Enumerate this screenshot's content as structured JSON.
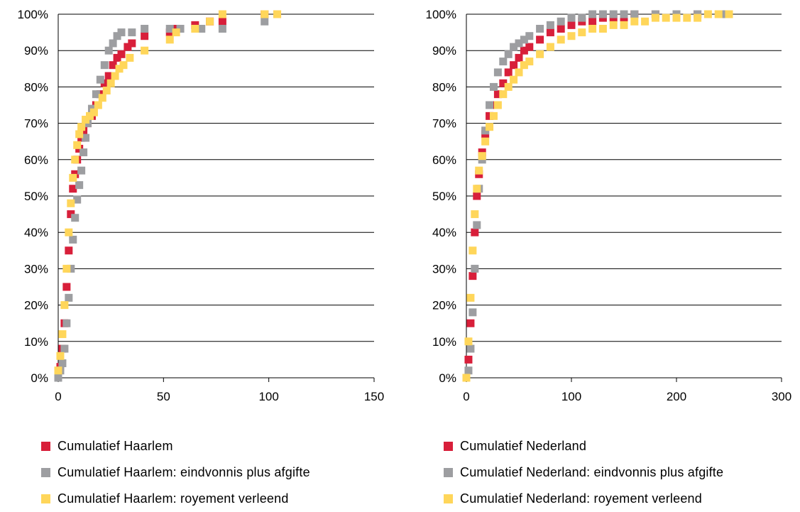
{
  "colors": {
    "red": "#D81F3A",
    "gray": "#9D9EA1",
    "yellow": "#FFD65A",
    "grid": "#000000"
  },
  "chart_data": [
    {
      "type": "scatter",
      "title": "",
      "xlabel": "",
      "ylabel": "",
      "xlim": [
        0,
        150
      ],
      "ylim": [
        0,
        100
      ],
      "x_ticks": [
        "0",
        "50",
        "100",
        "150"
      ],
      "y_ticks": [
        "0%",
        "10%",
        "20%",
        "30%",
        "40%",
        "50%",
        "60%",
        "70%",
        "80%",
        "90%",
        "100%"
      ],
      "grid": "horizontal",
      "series": [
        {
          "name": "Cumulatief Haarlem",
          "color": "#D81F3A",
          "points": [
            [
              0,
              0
            ],
            [
              1,
              3
            ],
            [
              2,
              8
            ],
            [
              3,
              15
            ],
            [
              4,
              25
            ],
            [
              5,
              35
            ],
            [
              6,
              45
            ],
            [
              7,
              52
            ],
            [
              8,
              56
            ],
            [
              9,
              60
            ],
            [
              10,
              63
            ],
            [
              11,
              66
            ],
            [
              12,
              68
            ],
            [
              14,
              70
            ],
            [
              16,
              72
            ],
            [
              18,
              75
            ],
            [
              20,
              78
            ],
            [
              22,
              81
            ],
            [
              24,
              83
            ],
            [
              26,
              86
            ],
            [
              28,
              88
            ],
            [
              30,
              89
            ],
            [
              33,
              91
            ],
            [
              35,
              92
            ],
            [
              41,
              94
            ],
            [
              53,
              95
            ],
            [
              56,
              96
            ],
            [
              65,
              97
            ],
            [
              72,
              98
            ],
            [
              78,
              98
            ],
            [
              98,
              100
            ],
            [
              104,
              100
            ]
          ]
        },
        {
          "name": "Cumulatief Haarlem: eindvonnis plus afgifte",
          "color": "#9D9EA1",
          "points": [
            [
              0,
              0
            ],
            [
              1,
              2
            ],
            [
              2,
              4
            ],
            [
              3,
              8
            ],
            [
              4,
              15
            ],
            [
              5,
              22
            ],
            [
              6,
              30
            ],
            [
              7,
              38
            ],
            [
              8,
              44
            ],
            [
              9,
              49
            ],
            [
              10,
              53
            ],
            [
              11,
              57
            ],
            [
              12,
              62
            ],
            [
              13,
              66
            ],
            [
              14,
              70
            ],
            [
              16,
              74
            ],
            [
              18,
              78
            ],
            [
              20,
              82
            ],
            [
              22,
              86
            ],
            [
              24,
              90
            ],
            [
              26,
              92
            ],
            [
              28,
              94
            ],
            [
              30,
              95
            ],
            [
              35,
              95
            ],
            [
              41,
              96
            ],
            [
              53,
              96
            ],
            [
              58,
              96
            ],
            [
              68,
              96
            ],
            [
              78,
              96
            ],
            [
              98,
              98
            ]
          ]
        },
        {
          "name": "Cumulatief Haarlem: royement verleend",
          "color": "#FFD65A",
          "points": [
            [
              0,
              2
            ],
            [
              1,
              6
            ],
            [
              2,
              12
            ],
            [
              3,
              20
            ],
            [
              4,
              30
            ],
            [
              5,
              40
            ],
            [
              6,
              48
            ],
            [
              7,
              55
            ],
            [
              8,
              60
            ],
            [
              9,
              64
            ],
            [
              10,
              67
            ],
            [
              11,
              69
            ],
            [
              13,
              71
            ],
            [
              15,
              72
            ],
            [
              17,
              73
            ],
            [
              19,
              75
            ],
            [
              21,
              77
            ],
            [
              23,
              79
            ],
            [
              25,
              81
            ],
            [
              27,
              83
            ],
            [
              29,
              85
            ],
            [
              31,
              86
            ],
            [
              34,
              88
            ],
            [
              41,
              90
            ],
            [
              53,
              93
            ],
            [
              56,
              95
            ],
            [
              65,
              96
            ],
            [
              72,
              98
            ],
            [
              78,
              100
            ],
            [
              98,
              100
            ],
            [
              104,
              100
            ]
          ]
        }
      ]
    },
    {
      "type": "scatter",
      "title": "",
      "xlabel": "",
      "ylabel": "",
      "xlim": [
        0,
        300
      ],
      "ylim": [
        0,
        100
      ],
      "x_ticks": [
        "0",
        "100",
        "200",
        "300"
      ],
      "y_ticks": [
        "0%",
        "10%",
        "20%",
        "30%",
        "40%",
        "50%",
        "60%",
        "70%",
        "80%",
        "90%",
        "100%"
      ],
      "grid": "horizontal",
      "series": [
        {
          "name": "Cumulatief Nederland",
          "color": "#D81F3A",
          "points": [
            [
              0,
              0
            ],
            [
              2,
              5
            ],
            [
              4,
              15
            ],
            [
              6,
              28
            ],
            [
              8,
              40
            ],
            [
              10,
              50
            ],
            [
              12,
              56
            ],
            [
              15,
              62
            ],
            [
              18,
              67
            ],
            [
              22,
              72
            ],
            [
              26,
              75
            ],
            [
              30,
              78
            ],
            [
              35,
              81
            ],
            [
              40,
              84
            ],
            [
              45,
              86
            ],
            [
              50,
              88
            ],
            [
              55,
              90
            ],
            [
              60,
              91
            ],
            [
              70,
              93
            ],
            [
              80,
              95
            ],
            [
              90,
              96
            ],
            [
              100,
              97
            ],
            [
              110,
              98
            ],
            [
              120,
              98
            ],
            [
              130,
              99
            ],
            [
              140,
              99
            ],
            [
              150,
              99
            ],
            [
              160,
              100
            ],
            [
              180,
              100
            ],
            [
              200,
              100
            ],
            [
              220,
              100
            ],
            [
              250,
              100
            ]
          ]
        },
        {
          "name": "Cumulatief Nederland: eindvonnis plus afgifte",
          "color": "#9D9EA1",
          "points": [
            [
              0,
              0
            ],
            [
              2,
              2
            ],
            [
              4,
              8
            ],
            [
              6,
              18
            ],
            [
              8,
              30
            ],
            [
              10,
              42
            ],
            [
              12,
              52
            ],
            [
              15,
              60
            ],
            [
              18,
              68
            ],
            [
              22,
              75
            ],
            [
              26,
              80
            ],
            [
              30,
              84
            ],
            [
              35,
              87
            ],
            [
              40,
              89
            ],
            [
              45,
              91
            ],
            [
              50,
              92
            ],
            [
              55,
              93
            ],
            [
              60,
              94
            ],
            [
              70,
              96
            ],
            [
              80,
              97
            ],
            [
              90,
              98
            ],
            [
              100,
              99
            ],
            [
              110,
              99
            ],
            [
              120,
              100
            ],
            [
              130,
              100
            ],
            [
              140,
              100
            ],
            [
              150,
              100
            ],
            [
              160,
              100
            ],
            [
              180,
              100
            ],
            [
              200,
              100
            ],
            [
              220,
              100
            ],
            [
              245,
              100
            ]
          ]
        },
        {
          "name": "Cumulatief Nederland: royement verleend",
          "color": "#FFD65A",
          "points": [
            [
              0,
              0
            ],
            [
              2,
              10
            ],
            [
              4,
              22
            ],
            [
              6,
              35
            ],
            [
              8,
              45
            ],
            [
              10,
              52
            ],
            [
              12,
              57
            ],
            [
              15,
              61
            ],
            [
              18,
              65
            ],
            [
              22,
              69
            ],
            [
              26,
              72
            ],
            [
              30,
              75
            ],
            [
              35,
              78
            ],
            [
              40,
              80
            ],
            [
              45,
              82
            ],
            [
              50,
              84
            ],
            [
              55,
              86
            ],
            [
              60,
              87
            ],
            [
              70,
              89
            ],
            [
              80,
              91
            ],
            [
              90,
              93
            ],
            [
              100,
              94
            ],
            [
              110,
              95
            ],
            [
              120,
              96
            ],
            [
              130,
              96
            ],
            [
              140,
              97
            ],
            [
              150,
              97
            ],
            [
              160,
              98
            ],
            [
              170,
              98
            ],
            [
              180,
              99
            ],
            [
              190,
              99
            ],
            [
              200,
              99
            ],
            [
              210,
              99
            ],
            [
              220,
              99
            ],
            [
              230,
              100
            ],
            [
              240,
              100
            ],
            [
              250,
              100
            ]
          ]
        }
      ]
    }
  ]
}
